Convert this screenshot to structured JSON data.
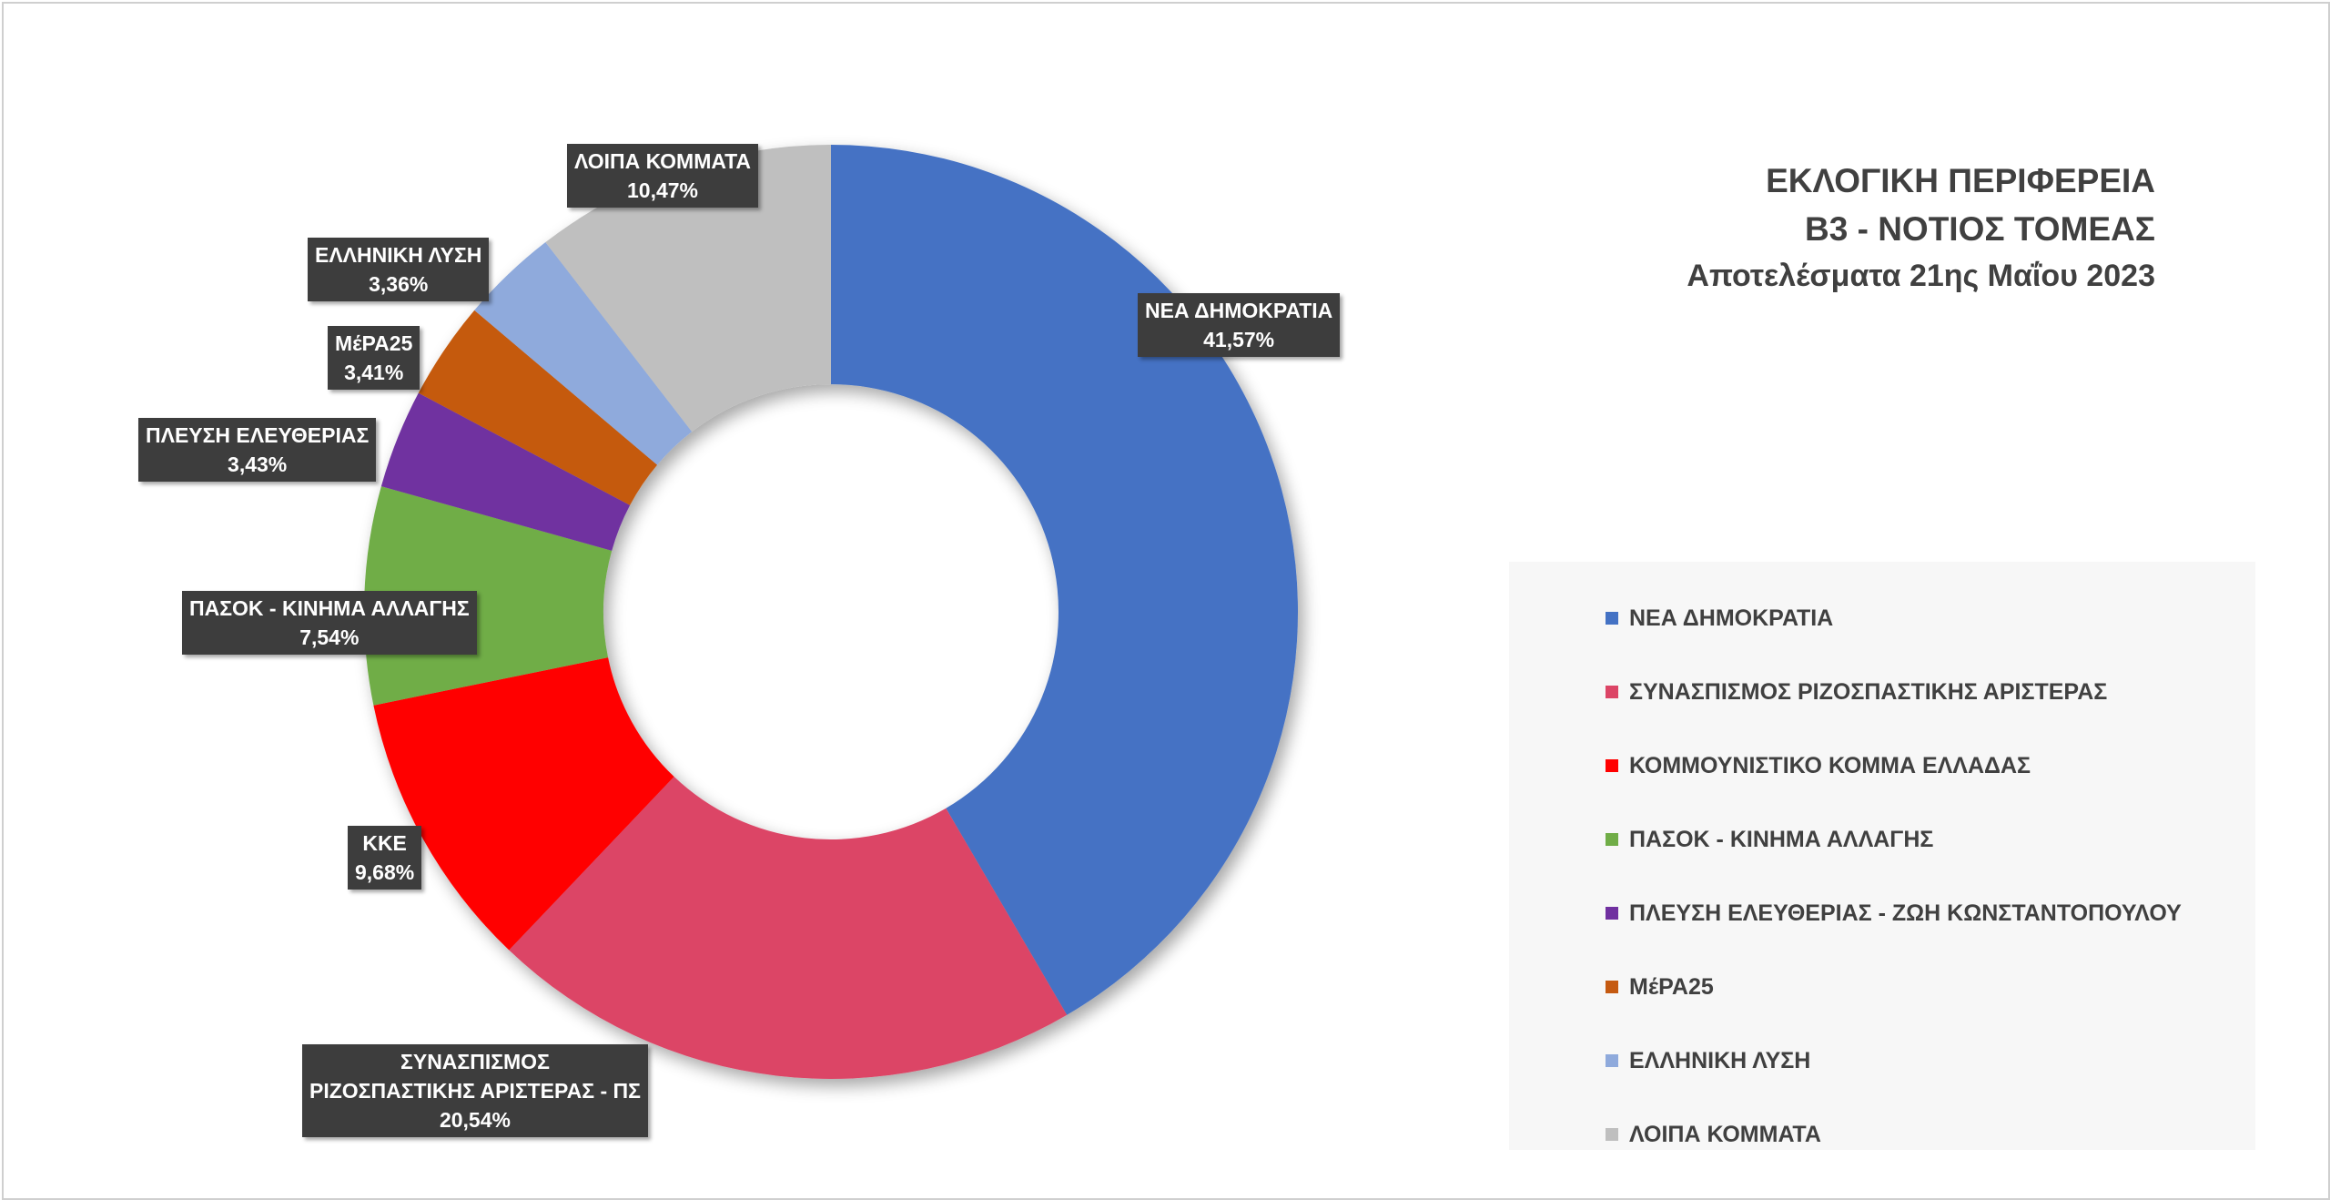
{
  "title": {
    "line1": "ΕΚΛΟΓΙΚΗ ΠΕΡΙΦΕΡΕΙΑ",
    "line2": "Β3 - ΝΟΤΙΟΣ ΤΟΜΕΑΣ",
    "line3": "Αποτελέσματα 21ης Μαΐου 2023"
  },
  "chart_data": {
    "type": "pie",
    "variant": "donut",
    "start_angle_deg": 0,
    "direction": "clockwise",
    "legend_position": "right",
    "slices": [
      {
        "legend": "ΝΕΑ ΔΗΜΟΚΡΑΤΙΑ",
        "label": [
          "ΝΕΑ ΔΗΜΟΚΡΑΤΙΑ"
        ],
        "value": 41.57,
        "value_text": "41,57%",
        "color": "#4472c4"
      },
      {
        "legend": "ΣΥΝΑΣΠΙΣΜΟΣ ΡΙΖΟΣΠΑΣΤΙΚΗΣ ΑΡΙΣΤΕΡΑΣ",
        "label": [
          "ΣΥΝΑΣΠΙΣΜΟΣ",
          "ΡΙΖΟΣΠΑΣΤΙΚΗΣ ΑΡΙΣΤΕΡΑΣ - ΠΣ"
        ],
        "value": 20.54,
        "value_text": "20,54%",
        "color": "#dc4566"
      },
      {
        "legend": "ΚΟΜΜΟΥΝΙΣΤΙΚΟ ΚΟΜΜΑ ΕΛΛΑΔΑΣ",
        "label": [
          "ΚΚΕ"
        ],
        "value": 9.68,
        "value_text": "9,68%",
        "color": "#ff0000"
      },
      {
        "legend": "ΠΑΣΟΚ - ΚΙΝΗΜΑ ΑΛΛΑΓΗΣ",
        "label": [
          "ΠΑΣΟΚ - ΚΙΝΗΜΑ ΑΛΛΑΓΗΣ"
        ],
        "value": 7.54,
        "value_text": "7,54%",
        "color": "#70ad47"
      },
      {
        "legend": "ΠΛΕΥΣΗ ΕΛΕΥΘΕΡΙΑΣ - ΖΩΗ ΚΩΝΣΤΑΝΤΟΠΟΥΛΟΥ",
        "label": [
          "ΠΛΕΥΣΗ ΕΛΕΥΘΕΡΙΑΣ"
        ],
        "value": 3.43,
        "value_text": "3,43%",
        "color": "#7030a0"
      },
      {
        "legend": "ΜέΡΑ25",
        "label": [
          "ΜέΡΑ25"
        ],
        "value": 3.41,
        "value_text": "3,41%",
        "color": "#c55a11"
      },
      {
        "legend": "ΕΛΛΗΝΙΚΗ ΛΥΣΗ",
        "label": [
          "ΕΛΛΗΝΙΚΗ ΛΥΣΗ"
        ],
        "value": 3.36,
        "value_text": "3,36%",
        "color": "#8faadc"
      },
      {
        "legend": "ΛΟΙΠΑ ΚΟΜΜΑΤΑ",
        "label": [
          "ΛΟΙΠΑ ΚΟΜΜΑΤΑ"
        ],
        "value": 10.47,
        "value_text": "10,47%",
        "color": "#bfbfbf"
      }
    ]
  }
}
